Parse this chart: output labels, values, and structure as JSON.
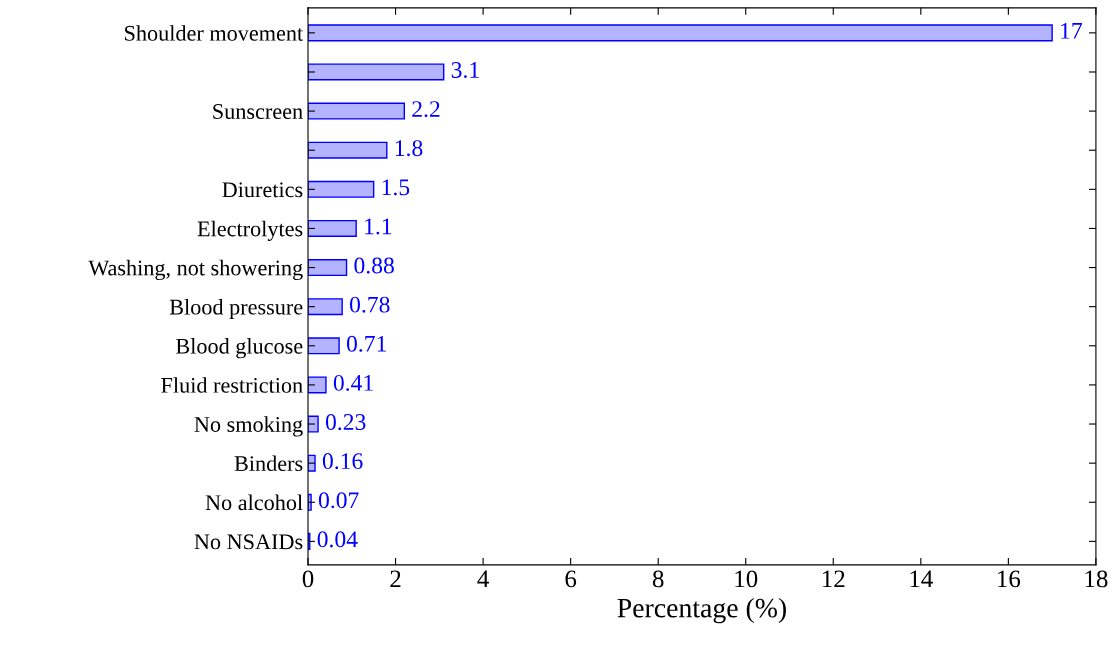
{
  "chart_data": {
    "type": "bar",
    "orientation": "horizontal",
    "xlabel": "Percentage (%)",
    "categories": [
      "Shoulder movement",
      null,
      "Sunscreen",
      null,
      "Diuretics",
      "Electrolytes",
      "Washing, not showering",
      "Blood pressure",
      "Blood glucose",
      "Fluid restriction",
      "No smoking",
      "Binders",
      "No alcohol",
      "No NSAIDs"
    ],
    "values": [
      17,
      3.1,
      2.2,
      1.8,
      1.5,
      1.1,
      0.88,
      0.78,
      0.71,
      0.41,
      0.23,
      0.16,
      0.07,
      0.04
    ],
    "color": "#b3b3ff",
    "data_labels": true,
    "xlim": [
      0,
      18
    ],
    "xticks": [
      0,
      2,
      4,
      6,
      8,
      10,
      12,
      14,
      16,
      18
    ],
    "grid": false,
    "legend": false
  }
}
